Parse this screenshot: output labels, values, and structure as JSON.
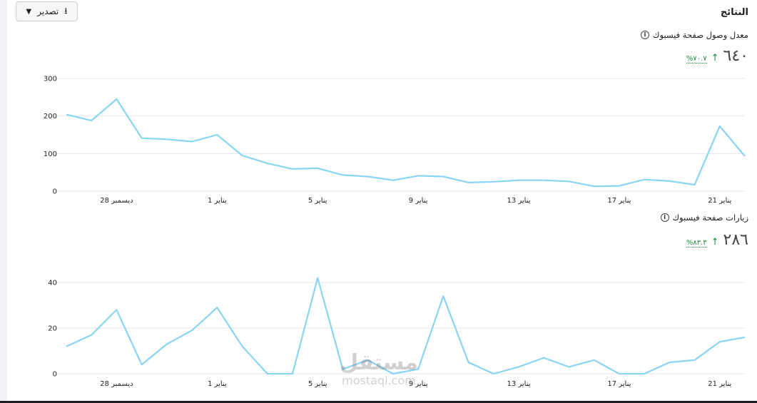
{
  "header": {
    "title": "النتائج",
    "export_label": "تصدير"
  },
  "icons": {
    "export": "download-icon",
    "caret": "caret-down-icon",
    "info": "info-icon",
    "trend": "arrow-up-icon"
  },
  "colors": {
    "line": "#89d4f5",
    "positive": "#1c8a3d"
  },
  "watermark": {
    "arabic": "مستقل",
    "latin": "mostaql.com"
  },
  "chart_data": [
    {
      "type": "line",
      "title": "معدل وصول صفحة فيسبوك",
      "value_display": "٦٤٠",
      "change_display": "%٧٠.٧",
      "ylim": [
        0,
        300
      ],
      "y_ticks": [
        0,
        100,
        200,
        300
      ],
      "x_ticks": [
        {
          "i": 2,
          "label": "28 ديسمبر"
        },
        {
          "i": 6,
          "label": "1 يناير"
        },
        {
          "i": 10,
          "label": "5 يناير"
        },
        {
          "i": 14,
          "label": "9 يناير"
        },
        {
          "i": 18,
          "label": "13 يناير"
        },
        {
          "i": 22,
          "label": "17 يناير"
        },
        {
          "i": 26,
          "label": "21 يناير"
        }
      ],
      "grid": true,
      "series": [
        {
          "values": [
            204,
            188,
            245,
            141,
            138,
            132,
            150,
            95,
            74,
            59,
            61,
            43,
            39,
            29,
            41,
            39,
            23,
            25,
            29,
            29,
            26,
            13,
            14,
            31,
            27,
            17,
            173,
            93
          ]
        }
      ]
    },
    {
      "type": "line",
      "title": "زيارات صفحة فيسبوك",
      "value_display": "٢٨٦",
      "change_display": "%٨٣.٣",
      "ylim": [
        0,
        45
      ],
      "y_ticks": [
        0,
        20,
        40
      ],
      "x_ticks": [
        {
          "i": 2,
          "label": "28 ديسمبر"
        },
        {
          "i": 6,
          "label": "1 يناير"
        },
        {
          "i": 10,
          "label": "5 يناير"
        },
        {
          "i": 14,
          "label": "9 يناير"
        },
        {
          "i": 18,
          "label": "13 يناير"
        },
        {
          "i": 22,
          "label": "17 يناير"
        },
        {
          "i": 26,
          "label": "21 يناير"
        }
      ],
      "grid": true,
      "series": [
        {
          "values": [
            12,
            17,
            28,
            4,
            13,
            19,
            29,
            12,
            0,
            0,
            42,
            2,
            6,
            0,
            2,
            34,
            5,
            0,
            3,
            7,
            3,
            6,
            0,
            0,
            5,
            6,
            14,
            16
          ]
        }
      ]
    }
  ]
}
